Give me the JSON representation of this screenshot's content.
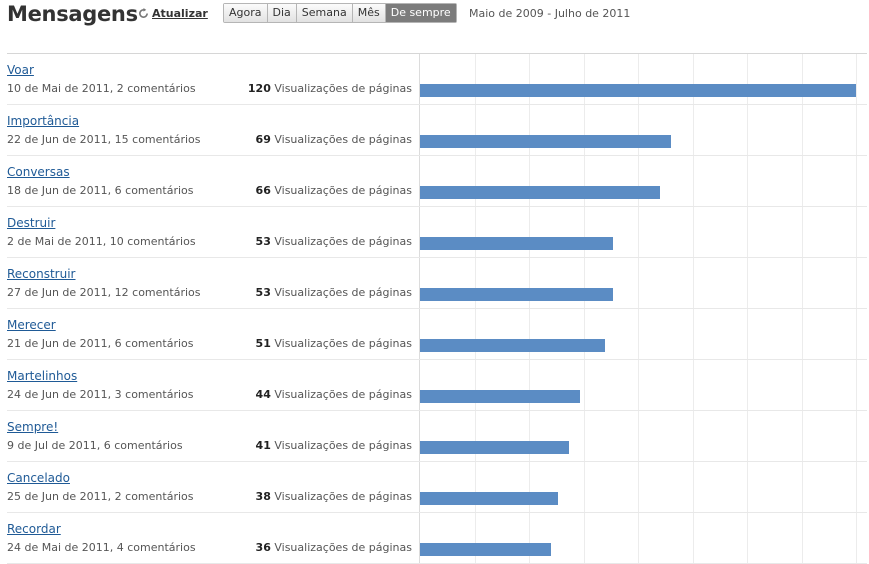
{
  "header": {
    "title": "Mensagens",
    "refresh_label": "Atualizar",
    "periods": [
      "Agora",
      "Dia",
      "Semana",
      "Mês",
      "De sempre"
    ],
    "active_period": "De sempre",
    "date_range": "Maio de 2009 - Julho de 2011"
  },
  "views_suffix": "Visualizações de páginas",
  "colors": {
    "bar": "#5b8cc4",
    "link": "#1f5a96"
  },
  "chart_data": {
    "type": "bar",
    "categories": [
      "Voar",
      "Importância",
      "Conversas",
      "Destruir",
      "Reconstruir",
      "Merecer",
      "Martelinhos",
      "Sempre!",
      "Cancelado",
      "Recordar"
    ],
    "values": [
      120,
      69,
      66,
      53,
      53,
      51,
      44,
      41,
      38,
      36
    ],
    "xlim": [
      0,
      120
    ],
    "grid": true
  },
  "posts": [
    {
      "title": "Voar",
      "meta": "10 de Mai de 2011, 2 comentários",
      "views": "120"
    },
    {
      "title": "Importância",
      "meta": "22 de Jun de 2011, 15 comentários",
      "views": "69"
    },
    {
      "title": "Conversas",
      "meta": "18 de Jun de 2011, 6 comentários",
      "views": "66"
    },
    {
      "title": "Destruir",
      "meta": "2 de Mai de 2011, 10 comentários",
      "views": "53"
    },
    {
      "title": "Reconstruir",
      "meta": "27 de Jun de 2011, 12 comentários",
      "views": "53"
    },
    {
      "title": "Merecer",
      "meta": "21 de Jun de 2011, 6 comentários",
      "views": "51"
    },
    {
      "title": "Martelinhos",
      "meta": "24 de Jun de 2011, 3 comentários",
      "views": "44"
    },
    {
      "title": "Sempre!",
      "meta": "9 de Jul de 2011, 6 comentários",
      "views": "41"
    },
    {
      "title": "Cancelado",
      "meta": "25 de Jun de 2011, 2 comentários",
      "views": "38"
    },
    {
      "title": "Recordar",
      "meta": "24 de Mai de 2011, 4 comentários",
      "views": "36"
    }
  ]
}
